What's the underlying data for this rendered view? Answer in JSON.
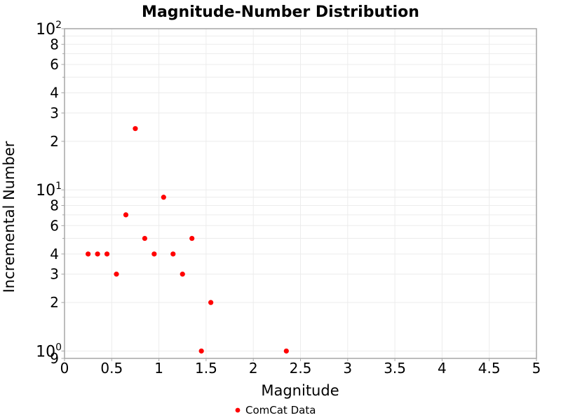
{
  "chart_data": {
    "type": "scatter",
    "title": "Magnitude-Number Distribution",
    "xlabel": "Magnitude",
    "ylabel": "Incremental Number",
    "xlim": [
      0,
      5
    ],
    "ylim": [
      0.9,
      100
    ],
    "yscale": "log",
    "grid": true,
    "x_ticks": [
      {
        "value": 0,
        "label": "0"
      },
      {
        "value": 0.5,
        "label": "0.5"
      },
      {
        "value": 1,
        "label": "1"
      },
      {
        "value": 1.5,
        "label": "1.5"
      },
      {
        "value": 2,
        "label": "2"
      },
      {
        "value": 2.5,
        "label": "2.5"
      },
      {
        "value": 3,
        "label": "3"
      },
      {
        "value": 3.5,
        "label": "3.5"
      },
      {
        "value": 4,
        "label": "4"
      },
      {
        "value": 4.5,
        "label": "4.5"
      },
      {
        "value": 5,
        "label": "5"
      }
    ],
    "y_ticks_major": [
      {
        "value": 100,
        "base": "10",
        "exponent": "2"
      },
      {
        "value": 10,
        "base": "10",
        "exponent": "1"
      },
      {
        "value": 1,
        "base": "10",
        "exponent": "0"
      }
    ],
    "y_ticks_minor_labeled": [
      {
        "value": 80,
        "label": "8"
      },
      {
        "value": 60,
        "label": "6"
      },
      {
        "value": 40,
        "label": "4"
      },
      {
        "value": 30,
        "label": "3"
      },
      {
        "value": 20,
        "label": "2"
      },
      {
        "value": 8,
        "label": "8"
      },
      {
        "value": 6,
        "label": "6"
      },
      {
        "value": 4,
        "label": "4"
      },
      {
        "value": 3,
        "label": "3"
      },
      {
        "value": 2,
        "label": "2"
      },
      {
        "value": 0.9,
        "label": "9"
      }
    ],
    "y_gridlines_unlabeled": [
      90,
      70,
      50,
      9,
      7,
      5,
      1
    ],
    "legend": {
      "position": "bottom-center",
      "entries": [
        {
          "label": "ComCat Data",
          "marker": "circle",
          "color": "#ff0000"
        }
      ]
    },
    "series": [
      {
        "name": "ComCat Data",
        "color": "#ff0000",
        "marker": "circle",
        "points": [
          [
            0.25,
            4
          ],
          [
            0.35,
            4
          ],
          [
            0.45,
            4
          ],
          [
            0.55,
            3
          ],
          [
            0.65,
            7
          ],
          [
            0.75,
            24
          ],
          [
            0.85,
            5
          ],
          [
            0.95,
            4
          ],
          [
            1.05,
            9
          ],
          [
            1.15,
            4
          ],
          [
            1.25,
            3
          ],
          [
            1.35,
            5
          ],
          [
            1.45,
            1
          ],
          [
            1.55,
            2
          ],
          [
            2.35,
            1
          ]
        ]
      }
    ]
  },
  "colors": {
    "marker": "#ff0000",
    "axis_border": "#a6a6a6",
    "gridline": "#ececec",
    "tick": "#a6a6a6",
    "text": "#000000",
    "background": "#ffffff"
  }
}
